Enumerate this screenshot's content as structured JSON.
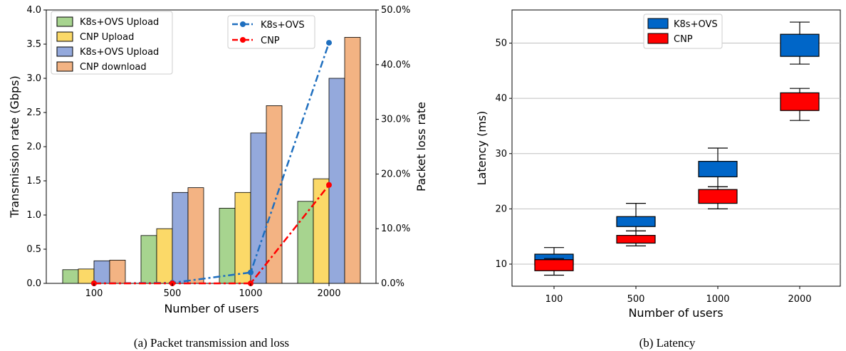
{
  "colors": {
    "k8s_upload": "#a7d48f",
    "cnp_upload": "#fbd968",
    "k8s_upload_2": "#94a9dc",
    "cnp_download": "#f3b383",
    "loss_k8s": "#1f6fbf",
    "loss_cnp": "#ff0000",
    "box_k8s": "#0066c8",
    "box_cnp": "#ff0000"
  },
  "chart_data": [
    {
      "type": "bar",
      "caption": "(a) Packet transmission and loss",
      "xlabel": "Number of users",
      "ylabel": "Transmission rate (Gbps)",
      "y2label": "Packet loss rate",
      "categories": [
        "100",
        "500",
        "1000",
        "2000"
      ],
      "ylim": [
        0,
        4.0
      ],
      "yticks": [
        "0.0",
        "0.5",
        "1.0",
        "1.5",
        "2.0",
        "2.5",
        "3.0",
        "3.5",
        "4.0"
      ],
      "y2lim": [
        0,
        50
      ],
      "y2ticks": [
        "0.0%",
        "10.0%",
        "20.0%",
        "30.0%",
        "40.0%",
        "50.0%"
      ],
      "legend_bars_position": "top-left",
      "legend_lines_position": "top-center",
      "bar_series": [
        {
          "name": "K8s+OVS Upload",
          "values": [
            0.2,
            0.7,
            1.1,
            1.2
          ]
        },
        {
          "name": "CNP Upload",
          "values": [
            0.21,
            0.8,
            1.33,
            1.53
          ]
        },
        {
          "name": "K8s+OVS Upload",
          "values": [
            0.33,
            1.33,
            2.2,
            3.0
          ]
        },
        {
          "name": "CNP download",
          "values": [
            0.34,
            1.4,
            2.6,
            3.6
          ]
        }
      ],
      "line_series": [
        {
          "name": "K8s+OVS",
          "values": [
            0.0,
            0.1,
            2.0,
            44.0
          ]
        },
        {
          "name": "CNP",
          "values": [
            0.0,
            0.0,
            0.0,
            18.0
          ]
        }
      ]
    },
    {
      "type": "box",
      "caption": "(b) Latency",
      "xlabel": "Number of users",
      "ylabel": "Latency (ms)",
      "categories": [
        "100",
        "500",
        "1000",
        "2000"
      ],
      "ylim": [
        6,
        56
      ],
      "yticks": [
        "10",
        "20",
        "30",
        "40",
        "50"
      ],
      "grid": "horizontal",
      "legend_position": "top-center",
      "series": [
        {
          "name": "K8s+OVS",
          "boxes": [
            {
              "min": 9.8,
              "q1": 9.8,
              "q3": 11.8,
              "max": 13.0
            },
            {
              "min": 16.0,
              "q1": 16.8,
              "q3": 18.6,
              "max": 21.0
            },
            {
              "min": 24.0,
              "q1": 25.8,
              "q3": 28.6,
              "max": 31.0
            },
            {
              "min": 46.2,
              "q1": 47.6,
              "q3": 51.6,
              "max": 53.8
            }
          ]
        },
        {
          "name": "CNP",
          "boxes": [
            {
              "min": 8.0,
              "q1": 8.8,
              "q3": 10.8,
              "max": 11.0
            },
            {
              "min": 13.3,
              "q1": 13.8,
              "q3": 15.2,
              "max": 16.0
            },
            {
              "min": 20.0,
              "q1": 21.0,
              "q3": 23.5,
              "max": 24.0
            },
            {
              "min": 36.0,
              "q1": 37.8,
              "q3": 41.0,
              "max": 41.8
            }
          ]
        }
      ]
    }
  ]
}
